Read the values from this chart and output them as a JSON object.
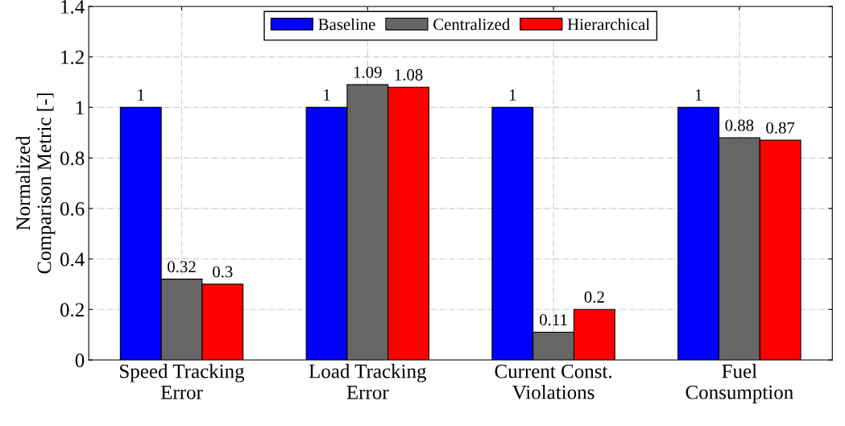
{
  "chart_data": {
    "type": "bar",
    "ylabel": "Normalized\nComparison Metric [-]",
    "categories": [
      "Speed Tracking\nError",
      "Load Tracking\nError",
      "Current Const.\nViolations",
      "Fuel\nConsumption"
    ],
    "series": [
      {
        "name": "Baseline",
        "color": "#0000ff",
        "values": [
          1,
          1,
          1,
          1
        ]
      },
      {
        "name": "Centralized",
        "color": "#666666",
        "values": [
          0.32,
          1.09,
          0.11,
          0.88
        ]
      },
      {
        "name": "Hierarchical",
        "color": "#ff0000",
        "values": [
          0.3,
          1.08,
          0.2,
          0.87
        ]
      }
    ],
    "ylim": [
      0,
      1.4
    ],
    "yticks": [
      0,
      0.2,
      0.4,
      0.6,
      0.8,
      1,
      1.2,
      1.4
    ],
    "grid": true,
    "legend": "top",
    "data_labels": true
  }
}
